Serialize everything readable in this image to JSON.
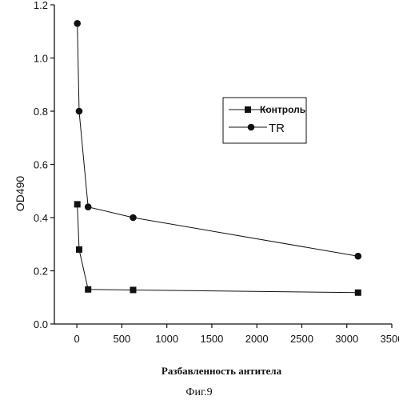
{
  "chart_data": {
    "type": "line",
    "title": "",
    "xlabel": "Разбавленность антитела",
    "ylabel": "OD490",
    "xlim": [
      -250,
      3500
    ],
    "ylim": [
      0,
      1.2
    ],
    "xticks": [
      0,
      500,
      1000,
      1500,
      2000,
      2500,
      3000,
      3500
    ],
    "yticks": [
      0.0,
      0.2,
      0.4,
      0.6,
      0.8,
      1.0,
      1.2
    ],
    "xtick_labels": [
      "0",
      "500",
      "1000",
      "1500",
      "2000",
      "2500",
      "3000",
      "3500"
    ],
    "ytick_labels": [
      "0.0",
      "0.2",
      "0.4",
      "0.6",
      "0.8",
      "1.0",
      "1.2"
    ],
    "grid": false,
    "legend_position": "upper-right",
    "series": [
      {
        "name": "Контроль",
        "marker": "square",
        "x": [
          5,
          25,
          125,
          625,
          3125
        ],
        "y": [
          0.45,
          0.28,
          0.13,
          0.128,
          0.118
        ]
      },
      {
        "name": "TR",
        "marker": "circle",
        "x": [
          5,
          25,
          125,
          625,
          3125
        ],
        "y": [
          1.13,
          0.8,
          0.44,
          0.4,
          0.255
        ]
      }
    ]
  },
  "caption": "Фиг.9"
}
